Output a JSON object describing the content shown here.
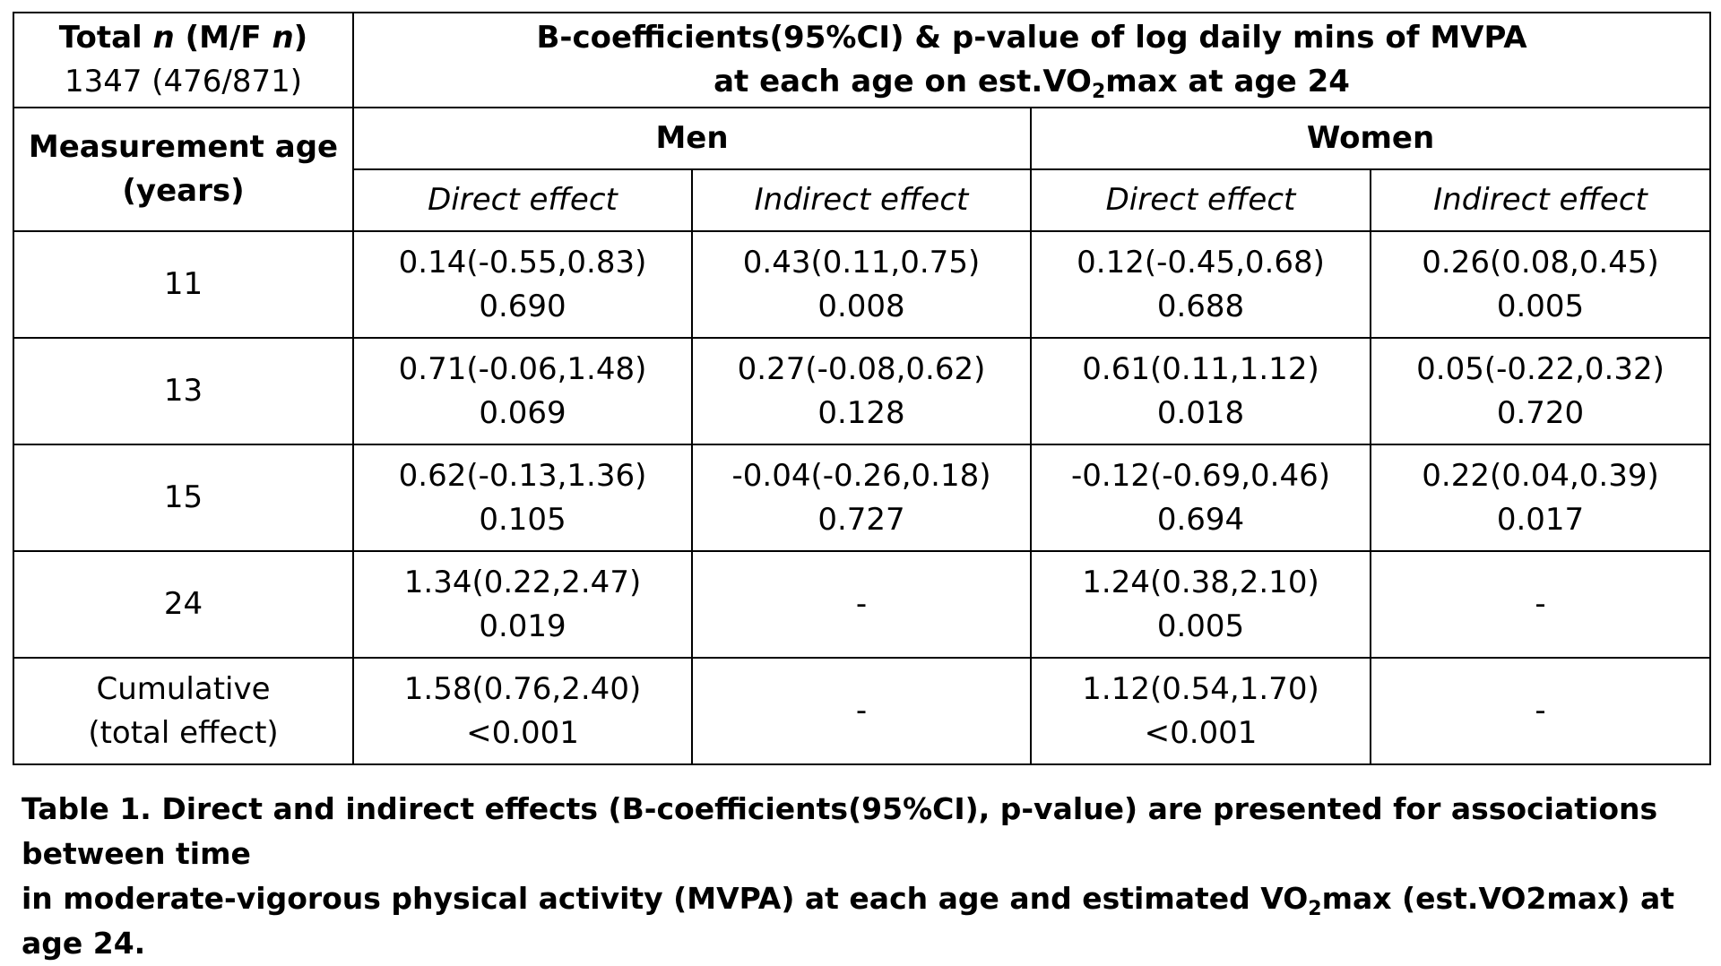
{
  "header": {
    "total_label": "Total",
    "total_n": "n",
    "total_mf_open": " (M/F ",
    "total_mf_n": "n",
    "total_mf_close": ")",
    "total_value": "1347 (476/871)",
    "title_line1": "B-coefficients(95%CI) & p-value of log daily mins of MVPA",
    "title_line2_pre": "at each age on est.VO",
    "title_line2_sub": "2",
    "title_line2_post": "max at age 24",
    "age_label_line1": "Measurement age",
    "age_label_line2": "(years)",
    "group_men": "Men",
    "group_women": "Women",
    "direct_effect": "Direct effect",
    "indirect_effect": "Indirect effect"
  },
  "rows": [
    {
      "age": "11",
      "age_line2": "",
      "men_direct": [
        "0.14(-0.55,0.83)",
        "0.690"
      ],
      "men_indirect": [
        "0.43(0.11,0.75)",
        "0.008"
      ],
      "women_direct": [
        "0.12(-0.45,0.68)",
        "0.688"
      ],
      "women_indirect": [
        "0.26(0.08,0.45)",
        "0.005"
      ]
    },
    {
      "age": "13",
      "age_line2": "",
      "men_direct": [
        "0.71(-0.06,1.48)",
        "0.069"
      ],
      "men_indirect": [
        "0.27(-0.08,0.62)",
        "0.128"
      ],
      "women_direct": [
        "0.61(0.11,1.12)",
        "0.018"
      ],
      "women_indirect": [
        "0.05(-0.22,0.32)",
        "0.720"
      ]
    },
    {
      "age": "15",
      "age_line2": "",
      "men_direct": [
        "0.62(-0.13,1.36)",
        "0.105"
      ],
      "men_indirect": [
        "-0.04(-0.26,0.18)",
        "0.727"
      ],
      "women_direct": [
        "-0.12(-0.69,0.46)",
        "0.694"
      ],
      "women_indirect": [
        "0.22(0.04,0.39)",
        "0.017"
      ]
    },
    {
      "age": "24",
      "age_line2": "",
      "men_direct": [
        "1.34(0.22,2.47)",
        "0.019"
      ],
      "men_indirect": [
        "-",
        ""
      ],
      "women_direct": [
        "1.24(0.38,2.10)",
        "0.005"
      ],
      "women_indirect": [
        "-",
        ""
      ]
    },
    {
      "age": "Cumulative",
      "age_line2": "(total effect)",
      "men_direct": [
        "1.58(0.76,2.40)",
        "<0.001"
      ],
      "men_indirect": [
        "-",
        ""
      ],
      "women_direct": [
        "1.12(0.54,1.70)",
        "<0.001"
      ],
      "women_indirect": [
        "-",
        ""
      ]
    }
  ],
  "caption": {
    "line1": "Table 1. Direct and indirect effects (B-coefficients(95%CI), p-value) are presented for associations between time",
    "line2_pre": "in moderate-vigorous physical activity (MVPA) at each age and estimated VO",
    "line2_sub": "2",
    "line2_post": "max (est.VO2max) at age 24."
  }
}
